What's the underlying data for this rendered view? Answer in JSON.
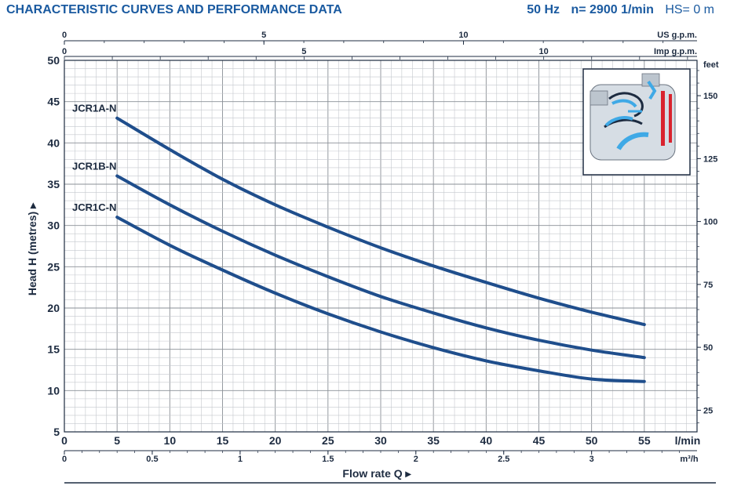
{
  "header": {
    "title": "CHARACTERISTIC CURVES AND PERFORMANCE DATA",
    "frequency": "50 Hz",
    "speed": "n= 2900  1/min",
    "suction": "HS= 0 m"
  },
  "pump_illustration": {
    "icon": "pump-cross-section-icon"
  },
  "chart_data": {
    "type": "line",
    "xlabel": "Flow rate  Q",
    "ylabel": "Head H (metres)",
    "x_unit": "l/min",
    "xlim": [
      0,
      60
    ],
    "ylim": [
      5,
      50
    ],
    "x_ticks": [
      "0",
      "5",
      "10",
      "15",
      "20",
      "25",
      "30",
      "35",
      "40",
      "45",
      "50",
      "55"
    ],
    "y_ticks": [
      "5",
      "10",
      "15",
      "20",
      "25",
      "30",
      "35",
      "40",
      "45",
      "50"
    ],
    "secondary_axes": {
      "us_gpm": {
        "label": "US g.p.m.",
        "ticks": [
          "0",
          "5",
          "10"
        ],
        "per_unit_lmin": 3.785
      },
      "imp_gpm": {
        "label": "Imp g.p.m.",
        "ticks": [
          "0",
          "5",
          "10"
        ],
        "per_unit_lmin": 4.546
      },
      "m3h": {
        "label": "m³/h",
        "ticks": [
          "0",
          "0.5",
          "1",
          "1.5",
          "2",
          "2.5",
          "3"
        ],
        "per_unit_lmin": 16.667
      },
      "feet": {
        "label": "feet",
        "ticks": [
          "25",
          "50",
          "75",
          "100",
          "125",
          "150"
        ],
        "per_unit_m": 0.3048
      }
    },
    "series": [
      {
        "name": "JCR1A-N",
        "x": [
          5,
          10,
          15,
          20,
          25,
          30,
          35,
          40,
          45,
          50,
          55
        ],
        "y": [
          43,
          39.2,
          35.6,
          32.5,
          29.8,
          27.3,
          25.1,
          23.1,
          21.2,
          19.5,
          18
        ]
      },
      {
        "name": "JCR1B-N",
        "x": [
          5,
          10,
          15,
          20,
          25,
          30,
          35,
          40,
          45,
          50,
          55
        ],
        "y": [
          36,
          32.5,
          29.3,
          26.4,
          23.8,
          21.4,
          19.4,
          17.6,
          16.1,
          14.9,
          14
        ]
      },
      {
        "name": "JCR1C-N",
        "x": [
          5,
          10,
          15,
          20,
          25,
          30,
          35,
          40,
          45,
          50,
          55
        ],
        "y": [
          31,
          27.6,
          24.6,
          21.8,
          19.3,
          17.1,
          15.2,
          13.6,
          12.4,
          11.4,
          11.1
        ]
      }
    ],
    "line_color": "#1f4e8c",
    "grid": true
  }
}
